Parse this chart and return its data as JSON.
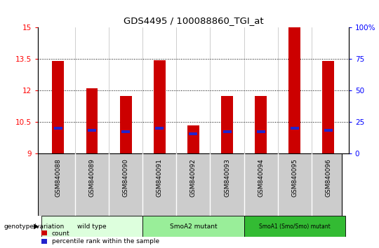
{
  "title": "GDS4495 / 100088860_TGI_at",
  "samples": [
    "GSM840088",
    "GSM840089",
    "GSM840090",
    "GSM840091",
    "GSM840092",
    "GSM840093",
    "GSM840094",
    "GSM840095",
    "GSM840096"
  ],
  "count_values": [
    13.4,
    12.1,
    11.75,
    13.45,
    10.35,
    11.75,
    11.75,
    15.0,
    13.4
  ],
  "percentile_values": [
    10.2,
    10.1,
    10.05,
    10.2,
    9.95,
    10.05,
    10.05,
    10.2,
    10.1
  ],
  "bar_bottom": 9.0,
  "ylim_left": [
    9.0,
    15.0
  ],
  "ylim_right": [
    0,
    100
  ],
  "yticks_left": [
    9,
    10.5,
    12,
    13.5,
    15
  ],
  "yticks_right": [
    0,
    25,
    50,
    75,
    100
  ],
  "ytick_labels_left": [
    "9",
    "10.5",
    "12",
    "13.5",
    "15"
  ],
  "ytick_labels_right": [
    "0",
    "25",
    "50",
    "75",
    "100%"
  ],
  "hlines": [
    10.5,
    12.0,
    13.5
  ],
  "bar_color_red": "#cc0000",
  "bar_color_blue": "#2222cc",
  "groups": [
    {
      "label": "wild type",
      "indices": [
        0,
        1,
        2
      ],
      "color": "#ddffdd"
    },
    {
      "label": "SmoA2 mutant",
      "indices": [
        3,
        4,
        5
      ],
      "color": "#99ee99"
    },
    {
      "label": "SmoA1 (Smo/Smo) mutant",
      "indices": [
        6,
        7,
        8
      ],
      "color": "#33bb33"
    }
  ],
  "group_row_label": "genotype/variation",
  "legend_count": "count",
  "legend_percentile": "percentile rank within the sample",
  "sample_bg_color": "#cccccc",
  "plot_bg_color": "#ffffff",
  "bar_width": 0.35,
  "blue_bar_width": 0.25,
  "blue_bar_height": 0.13
}
